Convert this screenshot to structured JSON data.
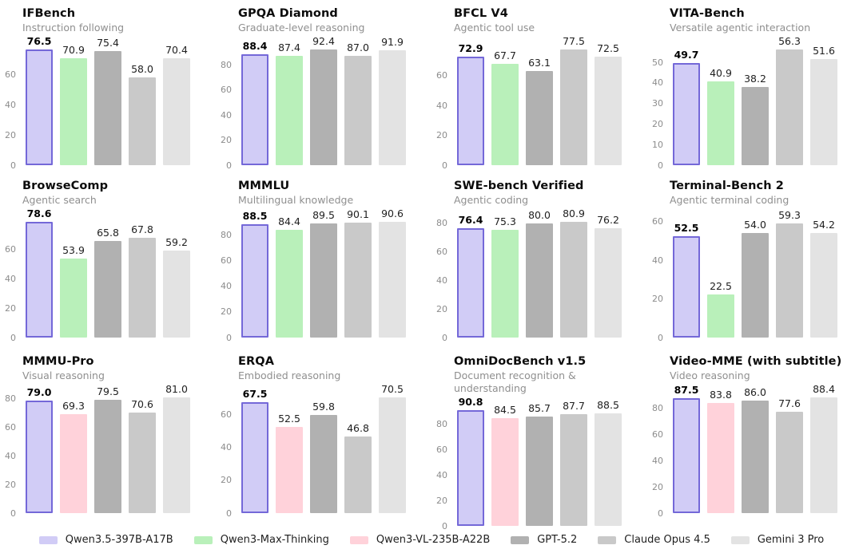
{
  "colors": {
    "highlight_fill": "#d1ccf6",
    "highlight_border": "#7468d8",
    "green": "#b9f0ba",
    "pink": "#ffd2da",
    "gray_dark": "#b1b1b1",
    "gray_mid": "#c9c9c9",
    "gray_light": "#e3e3e3"
  },
  "models": {
    "qwen35": {
      "label": "Qwen3.5-397B-A17B",
      "fill": "#d1ccf6",
      "border": "#7468d8"
    },
    "qwen3max": {
      "label": "Qwen3-Max-Thinking",
      "fill": "#b9f0ba"
    },
    "qwenvl": {
      "label": "Qwen3-VL-235B-A22B",
      "fill": "#ffd2da"
    },
    "gpt52": {
      "label": "GPT-5.2",
      "fill": "#b1b1b1"
    },
    "claude": {
      "label": "Claude Opus 4.5",
      "fill": "#c9c9c9"
    },
    "gemini": {
      "label": "Gemini 3 Pro",
      "fill": "#e3e3e3"
    }
  },
  "legend_order": [
    "qwen35",
    "qwen3max",
    "qwenvl",
    "gpt52",
    "claude",
    "gemini"
  ],
  "chart_data": [
    {
      "type": "bar",
      "title": "IFBench",
      "subtitle": "Instruction following",
      "yticks": [
        0,
        20,
        40,
        60
      ],
      "models": [
        "qwen35",
        "qwen3max",
        "gpt52",
        "claude",
        "gemini"
      ],
      "values": [
        76.5,
        70.9,
        75.4,
        58.0,
        70.4
      ]
    },
    {
      "type": "bar",
      "title": "GPQA Diamond",
      "subtitle": "Graduate-level reasoning",
      "yticks": [
        0,
        20,
        40,
        60,
        80
      ],
      "models": [
        "qwen35",
        "qwen3max",
        "gpt52",
        "claude",
        "gemini"
      ],
      "values": [
        88.4,
        87.4,
        92.4,
        87.0,
        91.9
      ]
    },
    {
      "type": "bar",
      "title": "BFCL V4",
      "subtitle": "Agentic tool use",
      "yticks": [
        0,
        20,
        40,
        60
      ],
      "models": [
        "qwen35",
        "qwen3max",
        "gpt52",
        "claude",
        "gemini"
      ],
      "values": [
        72.9,
        67.7,
        63.1,
        77.5,
        72.5
      ]
    },
    {
      "type": "bar",
      "title": "VITA-Bench",
      "subtitle": "Versatile agentic interaction",
      "yticks": [
        0,
        10,
        20,
        30,
        40,
        50
      ],
      "models": [
        "qwen35",
        "qwen3max",
        "gpt52",
        "claude",
        "gemini"
      ],
      "values": [
        49.7,
        40.9,
        38.2,
        56.3,
        51.6
      ]
    },
    {
      "type": "bar",
      "title": "BrowseComp",
      "subtitle": "Agentic search",
      "yticks": [
        0,
        20,
        40,
        60
      ],
      "models": [
        "qwen35",
        "qwen3max",
        "gpt52",
        "claude",
        "gemini"
      ],
      "values": [
        78.6,
        53.9,
        65.8,
        67.8,
        59.2
      ]
    },
    {
      "type": "bar",
      "title": "MMMLU",
      "subtitle": "Multilingual knowledge",
      "yticks": [
        0,
        20,
        40,
        60,
        80
      ],
      "models": [
        "qwen35",
        "qwen3max",
        "gpt52",
        "claude",
        "gemini"
      ],
      "values": [
        88.5,
        84.4,
        89.5,
        90.1,
        90.6
      ]
    },
    {
      "type": "bar",
      "title": "SWE-bench Verified",
      "subtitle": "Agentic coding",
      "yticks": [
        0,
        20,
        40,
        60,
        80
      ],
      "models": [
        "qwen35",
        "qwen3max",
        "gpt52",
        "claude",
        "gemini"
      ],
      "values": [
        76.4,
        75.3,
        80.0,
        80.9,
        76.2
      ]
    },
    {
      "type": "bar",
      "title": "Terminal-Bench 2",
      "subtitle": "Agentic terminal coding",
      "yticks": [
        0,
        20,
        40,
        60
      ],
      "models": [
        "qwen35",
        "qwen3max",
        "gpt52",
        "claude",
        "gemini"
      ],
      "values": [
        52.5,
        22.5,
        54.0,
        59.3,
        54.2
      ]
    },
    {
      "type": "bar",
      "title": "MMMU-Pro",
      "subtitle": "Visual reasoning",
      "yticks": [
        0,
        20,
        40,
        60,
        80
      ],
      "models": [
        "qwen35",
        "qwenvl",
        "gpt52",
        "claude",
        "gemini"
      ],
      "values": [
        79.0,
        69.3,
        79.5,
        70.6,
        81.0
      ]
    },
    {
      "type": "bar",
      "title": "ERQA",
      "subtitle": "Embodied reasoning",
      "yticks": [
        0,
        20,
        40,
        60
      ],
      "models": [
        "qwen35",
        "qwenvl",
        "gpt52",
        "claude",
        "gemini"
      ],
      "values": [
        67.5,
        52.5,
        59.8,
        46.8,
        70.5
      ]
    },
    {
      "type": "bar",
      "title": "OmniDocBench v1.5",
      "subtitle": "Document recognition &amp; understanding",
      "yticks": [
        0,
        20,
        40,
        60,
        80
      ],
      "models": [
        "qwen35",
        "qwenvl",
        "gpt52",
        "claude",
        "gemini"
      ],
      "values": [
        90.8,
        84.5,
        85.7,
        87.7,
        88.5
      ]
    },
    {
      "type": "bar",
      "title": "Video-MME (with subtitle)",
      "subtitle": "Video reasoning",
      "yticks": [
        0,
        20,
        40,
        60,
        80
      ],
      "models": [
        "qwen35",
        "qwenvl",
        "gpt52",
        "claude",
        "gemini"
      ],
      "values": [
        87.5,
        83.8,
        86.0,
        77.6,
        88.4
      ]
    }
  ]
}
